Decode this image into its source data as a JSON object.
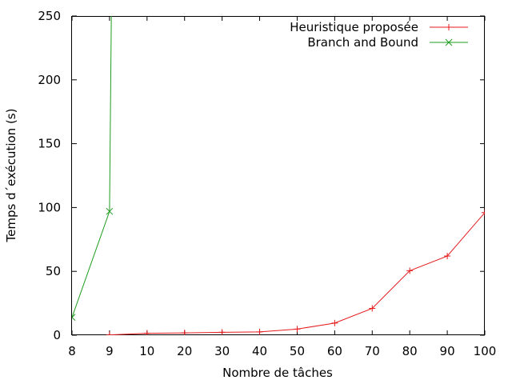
{
  "chart_data": {
    "type": "line",
    "xlabel": "Nombre de tâches",
    "ylabel": "Temps d´exécution (s)",
    "categories": [
      "8",
      "9",
      "10",
      "20",
      "30",
      "40",
      "50",
      "60",
      "70",
      "80",
      "90",
      "100"
    ],
    "ylim": [
      0,
      250
    ],
    "yticks": [
      0,
      50,
      100,
      150,
      200,
      250
    ],
    "grid": false,
    "legend_position": "top-right",
    "series": [
      {
        "name": "Heuristique proposée",
        "color": "#e41a1c",
        "marker": "plus",
        "x": [
          "9",
          "10",
          "20",
          "30",
          "40",
          "50",
          "60",
          "70",
          "80",
          "90",
          "100"
        ],
        "values": [
          0.2,
          1.5,
          1.8,
          2.3,
          2.6,
          4.8,
          9.5,
          21,
          50.5,
          62,
          96
        ]
      },
      {
        "name": "Branch and Bound",
        "color": "#1e9c1e",
        "marker": "cross",
        "x": [
          "8",
          "9",
          "9"
        ],
        "values": [
          14,
          97,
          300
        ]
      }
    ]
  }
}
